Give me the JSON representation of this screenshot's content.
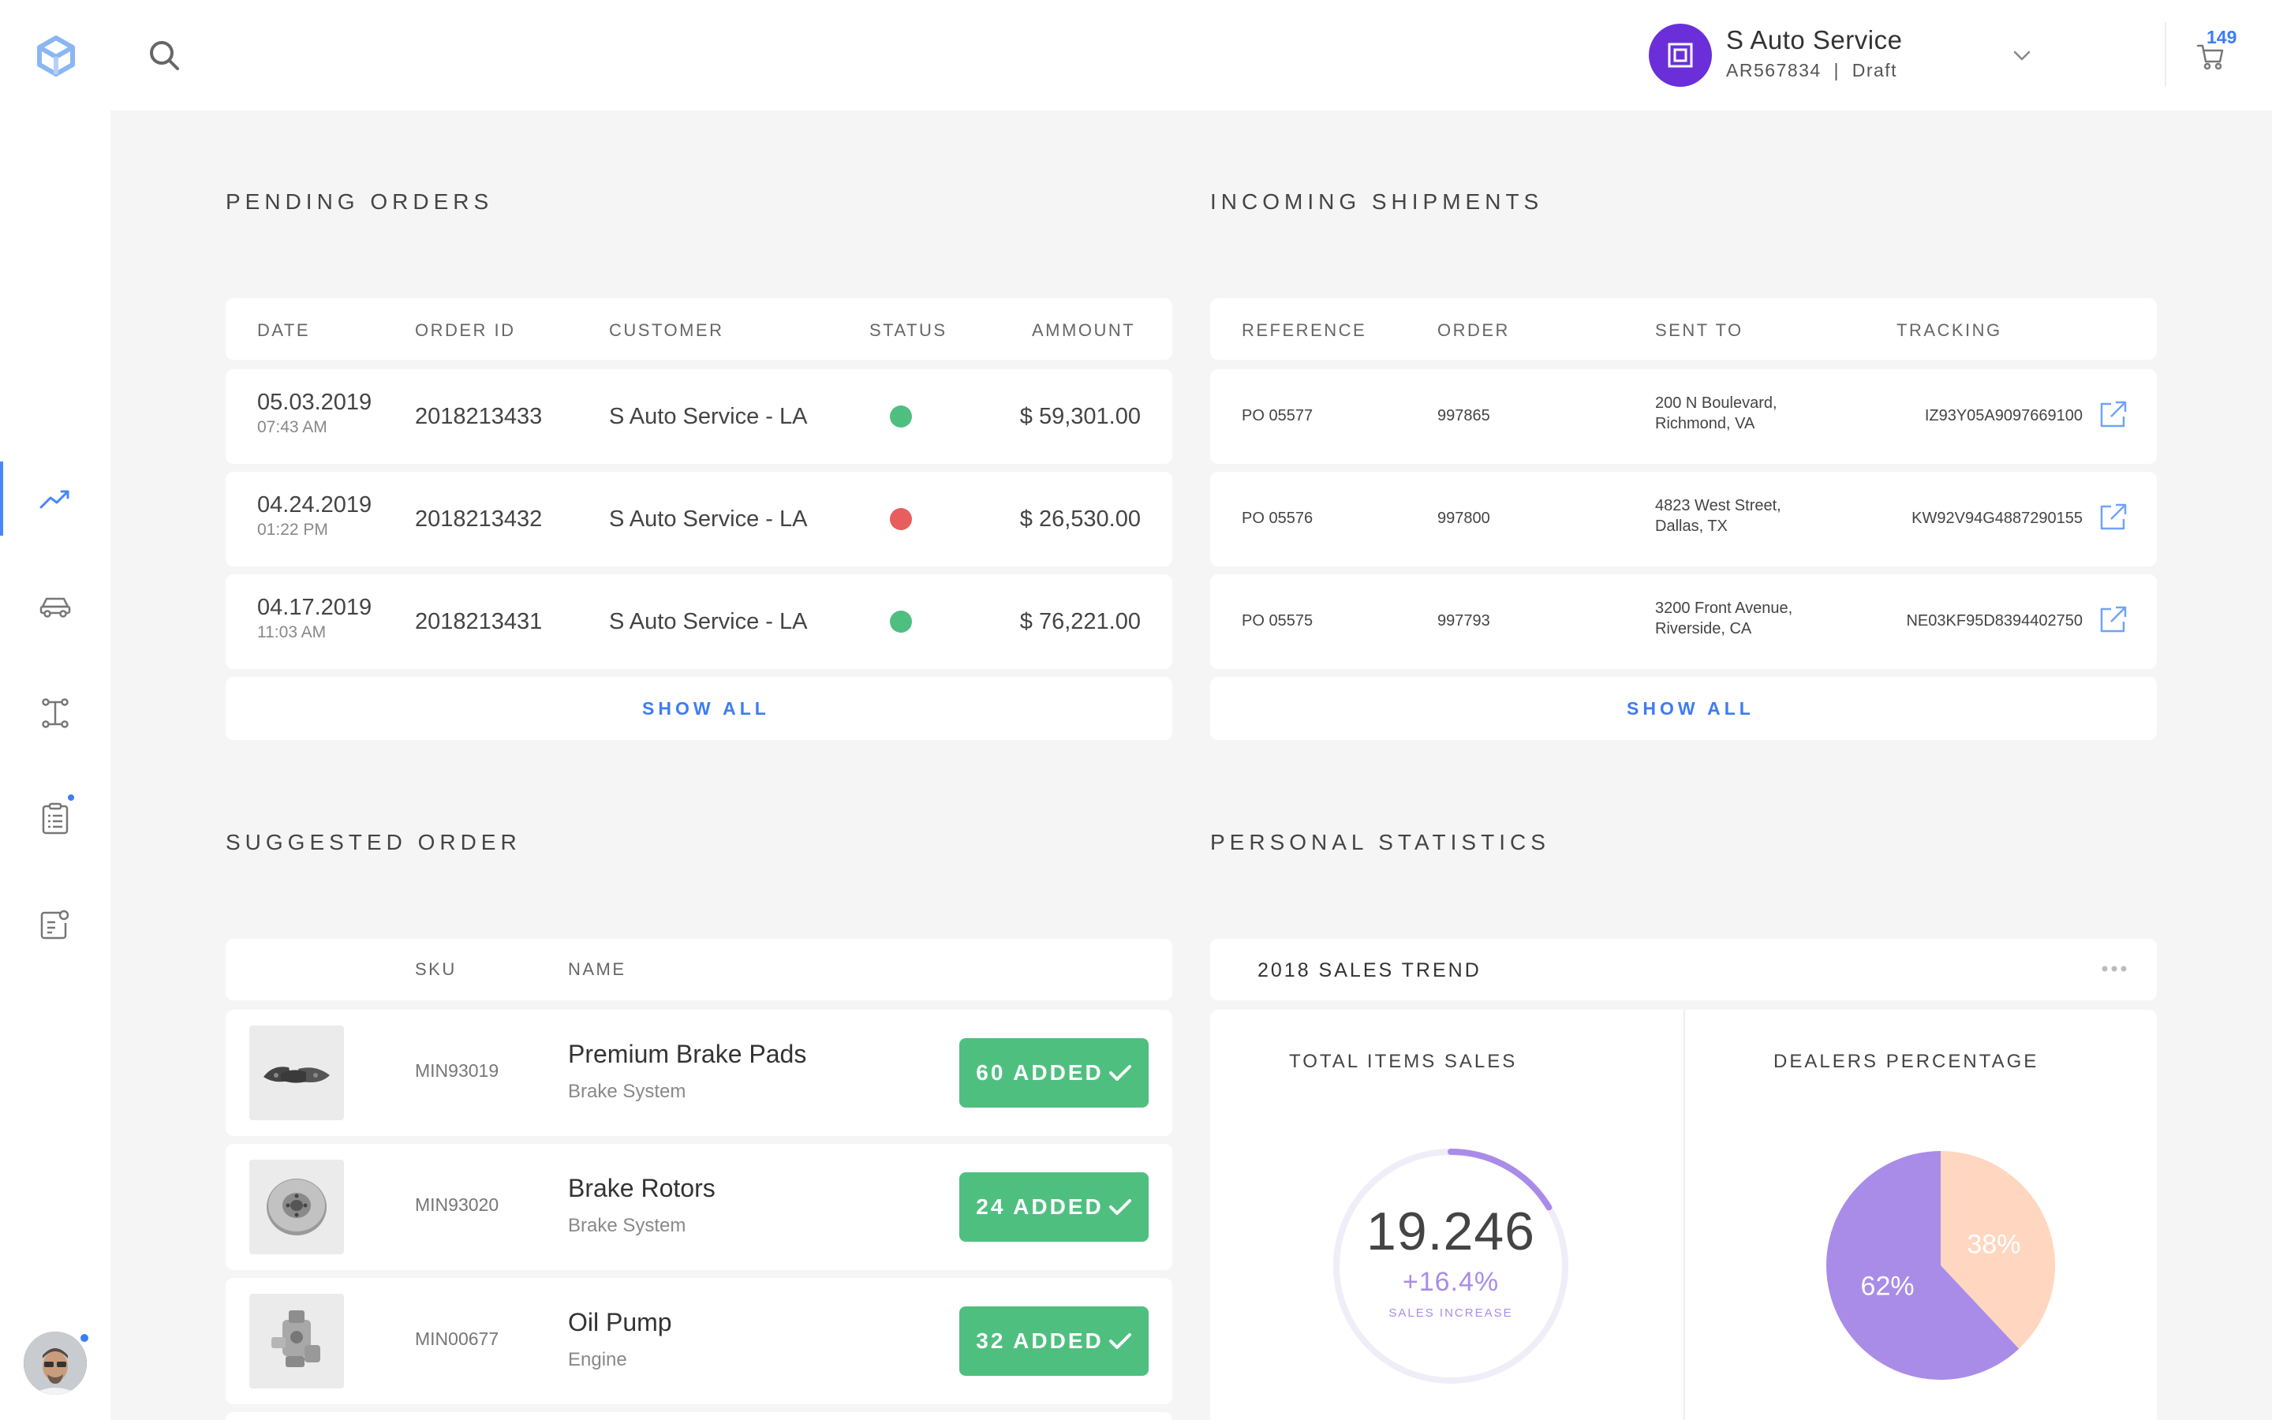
{
  "header": {
    "account_name": "S Auto Service",
    "account_sub": "AR567834  |  Draft",
    "cart_count": "149"
  },
  "sidebar": {
    "items": [
      {
        "icon": "trending-up-icon",
        "active": true
      },
      {
        "icon": "car-icon",
        "active": false
      },
      {
        "icon": "parts-icon",
        "active": false
      },
      {
        "icon": "checklist-icon",
        "active": false,
        "notification": true
      },
      {
        "icon": "profile-card-icon",
        "active": false
      }
    ]
  },
  "pending_orders": {
    "title": "PENDING ORDERS",
    "headers": [
      "DATE",
      "ORDER ID",
      "CUSTOMER",
      "STATUS",
      "AMMOUNT"
    ],
    "rows": [
      {
        "date": "05.03.2019",
        "time": "07:43 AM",
        "order_id": "2018213433",
        "customer": "S Auto Service - LA",
        "status": "green",
        "amount": "$ 59,301.00"
      },
      {
        "date": "04.24.2019",
        "time": "01:22 PM",
        "order_id": "2018213432",
        "customer": "S Auto Service - LA",
        "status": "red",
        "amount": "$ 26,530.00"
      },
      {
        "date": "04.17.2019",
        "time": "11:03 AM",
        "order_id": "2018213431",
        "customer": "S Auto Service - LA",
        "status": "green",
        "amount": "$ 76,221.00"
      }
    ],
    "show_all": "SHOW ALL"
  },
  "incoming_shipments": {
    "title": "INCOMING SHIPMENTS",
    "headers": [
      "REFERENCE",
      "ORDER",
      "SENT TO",
      "TRACKING"
    ],
    "rows": [
      {
        "reference": "PO 05577",
        "order": "997865",
        "sent_to_1": "200 N Boulevard,",
        "sent_to_2": "Richmond, VA",
        "tracking": "IZ93Y05A9097669100"
      },
      {
        "reference": "PO 05576",
        "order": "997800",
        "sent_to_1": "4823 West Street,",
        "sent_to_2": "Dallas, TX",
        "tracking": "KW92V94G4887290155"
      },
      {
        "reference": "PO 05575",
        "order": "997793",
        "sent_to_1": "3200 Front Avenue,",
        "sent_to_2": "Riverside, CA",
        "tracking": "NE03KF95D8394402750"
      }
    ],
    "show_all": "SHOW ALL"
  },
  "suggested_order": {
    "title": "SUGGESTED ORDER",
    "headers": [
      "SKU",
      "NAME"
    ],
    "rows": [
      {
        "sku": "MIN93019",
        "name": "Premium Brake Pads",
        "category": "Brake System",
        "added": "60 ADDED",
        "icon": "brake-pads-icon"
      },
      {
        "sku": "MIN93020",
        "name": "Brake Rotors",
        "category": "Brake System",
        "added": "24 ADDED",
        "icon": "brake-rotor-icon"
      },
      {
        "sku": "MIN00677",
        "name": "Oil Pump",
        "category": "Engine",
        "added": "32 ADDED",
        "icon": "oil-pump-icon"
      }
    ]
  },
  "personal_statistics": {
    "title": "PERSONAL STATISTICS",
    "card_title": "2018 SALES TREND",
    "total_items": {
      "label": "TOTAL ITEMS SALES",
      "value": "19.246",
      "change": "+16.4%",
      "change_label": "SALES INCREASE",
      "progress_fraction": 0.164
    },
    "dealers": {
      "label": "DEALERS PERCENTAGE",
      "slices": [
        {
          "label": "62%",
          "value": 62,
          "color": "#a98ce8"
        },
        {
          "label": "38%",
          "value": 38,
          "color": "#ffd6bf"
        }
      ]
    }
  },
  "colors": {
    "accent": "#3d7cf5",
    "success": "#4fbf80",
    "danger": "#e85d5d",
    "purple": "#a98ce8",
    "peach": "#ffd6bf"
  }
}
